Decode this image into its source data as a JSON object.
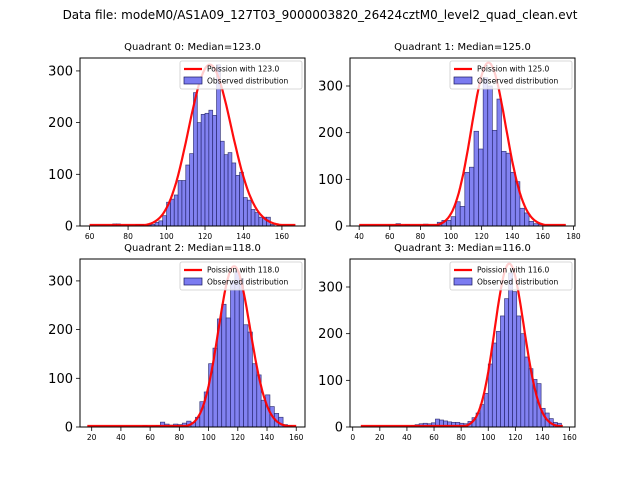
{
  "suptitle": "Data file: modeM0/AS1A09_127T03_9000003820_26424cztM0_level2_quad_clean.evt",
  "colors": {
    "bar_fill": "#7b7bf0",
    "bar_edge": "#1a1a5e",
    "poisson_line": "#ff0000"
  },
  "chart_data": [
    {
      "type": "bar",
      "title": "Quadrant 0: Median=123.0",
      "xlabel": "",
      "ylabel": "",
      "xlim": [
        55,
        172
      ],
      "ylim": [
        0,
        325
      ],
      "xticks": [
        60,
        80,
        100,
        120,
        140,
        160
      ],
      "yticks": [
        0,
        100,
        200,
        300
      ],
      "legend": {
        "placement": "top-right",
        "entries": [
          "Poission with 123.0",
          "Observed distribution"
        ]
      },
      "median": 123.0,
      "bin_width": 2,
      "bins_start": [
        72,
        74,
        84,
        86,
        90,
        92,
        94,
        96,
        98,
        100,
        102,
        104,
        106,
        108,
        110,
        112,
        114,
        116,
        118,
        120,
        122,
        124,
        126,
        128,
        130,
        132,
        134,
        136,
        138,
        140,
        142,
        144,
        146,
        148,
        150,
        152,
        154
      ],
      "counts": [
        4,
        4,
        3,
        3,
        2,
        3,
        7,
        10,
        20,
        46,
        52,
        60,
        88,
        88,
        118,
        140,
        258,
        200,
        216,
        218,
        224,
        214,
        312,
        164,
        138,
        142,
        122,
        98,
        104,
        55,
        50,
        32,
        26,
        17,
        17,
        17,
        3
      ],
      "poisson": {
        "name": "Poission with 123.0",
        "mu": 123.0,
        "x_range": [
          60,
          167
        ],
        "peak": 312
      }
    },
    {
      "type": "bar",
      "title": "Quadrant 1: Median=125.0",
      "xlabel": "",
      "ylabel": "",
      "xlim": [
        34,
        181
      ],
      "ylim": [
        0,
        360
      ],
      "xticks": [
        40,
        60,
        80,
        100,
        120,
        140,
        160,
        180
      ],
      "yticks": [
        0,
        100,
        200,
        300
      ],
      "legend": {
        "placement": "top-right",
        "entries": [
          "Poission with 125.0",
          "Observed distribution"
        ]
      },
      "median": 125.0,
      "bin_width": 3,
      "bins_start": [
        64,
        70,
        82,
        91,
        94,
        97,
        100,
        103,
        106,
        109,
        112,
        115,
        118,
        121,
        124,
        127,
        130,
        133,
        136,
        139,
        142,
        145,
        148,
        151,
        154,
        157
      ],
      "counts": [
        5,
        3,
        4,
        8,
        12,
        12,
        20,
        52,
        42,
        115,
        126,
        203,
        165,
        318,
        300,
        205,
        272,
        160,
        156,
        115,
        95,
        38,
        28,
        10,
        5,
        3
      ],
      "poisson": {
        "name": "Poission with 125.0",
        "mu": 125.0,
        "x_range": [
          40,
          175
        ],
        "peak": 350
      }
    },
    {
      "type": "bar",
      "title": "Quadrant 2: Median=118.0",
      "xlabel": "",
      "ylabel": "",
      "xlim": [
        12,
        166
      ],
      "ylim": [
        0,
        345
      ],
      "xticks": [
        20,
        40,
        60,
        80,
        100,
        120,
        140,
        160
      ],
      "yticks": [
        0,
        100,
        200,
        300
      ],
      "legend": {
        "placement": "top-right",
        "entries": [
          "Poission with 118.0",
          "Observed distribution"
        ]
      },
      "median": 118.0,
      "bin_width": 3,
      "bins_start": [
        55,
        61,
        64,
        67,
        70,
        73,
        76,
        79,
        82,
        85,
        88,
        91,
        94,
        97,
        100,
        103,
        106,
        109,
        112,
        115,
        118,
        121,
        124,
        127,
        130,
        133,
        136,
        139,
        142,
        145,
        148,
        151,
        154
      ],
      "counts": [
        3,
        2,
        3,
        10,
        6,
        4,
        6,
        5,
        8,
        12,
        9,
        20,
        52,
        72,
        130,
        162,
        222,
        252,
        224,
        300,
        320,
        305,
        210,
        195,
        130,
        107,
        55,
        66,
        42,
        28,
        20,
        5,
        3
      ],
      "poisson": {
        "name": "Poission with 118.0",
        "mu": 118.0,
        "x_range": [
          17,
          160
        ],
        "peak": 330
      }
    },
    {
      "type": "bar",
      "title": "Quadrant 3: Median=116.0",
      "xlabel": "",
      "ylabel": "",
      "xlim": [
        -2,
        164
      ],
      "ylim": [
        0,
        360
      ],
      "xticks": [
        0,
        20,
        40,
        60,
        80,
        100,
        120,
        140,
        160
      ],
      "yticks": [
        0,
        100,
        200,
        300
      ],
      "legend": {
        "placement": "top-right",
        "entries": [
          "Poission with 116.0",
          "Observed distribution"
        ]
      },
      "median": 116.0,
      "bin_width": 3,
      "bins_start": [
        43,
        46,
        49,
        52,
        55,
        58,
        61,
        64,
        67,
        70,
        73,
        76,
        79,
        82,
        85,
        88,
        91,
        94,
        97,
        100,
        103,
        106,
        109,
        112,
        115,
        118,
        121,
        124,
        127,
        130,
        133,
        136,
        139,
        142,
        145,
        148,
        151
      ],
      "counts": [
        3,
        5,
        7,
        8,
        7,
        9,
        17,
        15,
        13,
        11,
        10,
        10,
        8,
        7,
        12,
        20,
        30,
        48,
        72,
        135,
        180,
        205,
        238,
        275,
        330,
        290,
        238,
        200,
        150,
        125,
        102,
        93,
        40,
        30,
        18,
        10,
        8
      ],
      "poisson": {
        "name": "Poission with 116.0",
        "mu": 116.0,
        "x_range": [
          6,
          155
        ],
        "peak": 350
      }
    }
  ]
}
